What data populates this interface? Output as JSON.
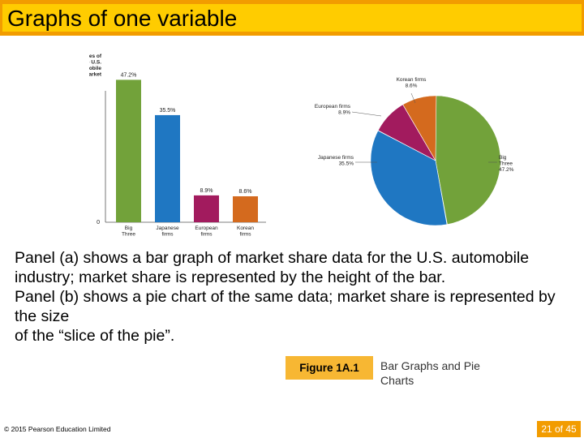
{
  "slide": {
    "title": "Graphs of one variable",
    "description": [
      "Panel (a) shows a bar graph of market share data for the U.S. automobile industry; market share is represented by the height of the bar.",
      "Panel (b) shows a pie chart of the same data; market share is represented by the size",
      "of the “slice of the pie”."
    ],
    "figure_tag": "Figure 1A.1",
    "figure_caption": "Bar Graphs and Pie Charts",
    "copyright": "© 2015 Pearson Education Limited",
    "page_number": "21 of 45"
  },
  "chart_data": [
    {
      "type": "bar",
      "ylabel": [
        "Shares of",
        "the U.S.",
        "automobile",
        "market"
      ],
      "y_tick_labels": [
        "0"
      ],
      "categories": [
        [
          "Big",
          "Three"
        ],
        [
          "Japanese",
          "firms"
        ],
        [
          "European",
          "firms"
        ],
        [
          "Korean",
          "firms"
        ]
      ],
      "values": [
        47.2,
        35.5,
        8.9,
        8.6
      ],
      "data_labels": [
        "47.2%",
        "35.5%",
        "8.9%",
        "8.6%"
      ],
      "colors": [
        "#72A23A",
        "#1F77C2",
        "#A21B5E",
        "#D46A1E"
      ],
      "ylim": [
        0,
        50
      ]
    },
    {
      "type": "pie",
      "slices": [
        {
          "label": [
            "Big",
            "Three",
            "47.2%"
          ],
          "value": 47.2,
          "color": "#72A23A"
        },
        {
          "label": [
            "Japanese firms",
            "35.5%"
          ],
          "value": 35.5,
          "color": "#1F77C2"
        },
        {
          "label": [
            "European firms",
            "8.9%"
          ],
          "value": 8.9,
          "color": "#A21B5E"
        },
        {
          "label": [
            "Korean firms",
            "8.6%"
          ],
          "value": 8.6,
          "color": "#D46A1E"
        }
      ]
    }
  ]
}
